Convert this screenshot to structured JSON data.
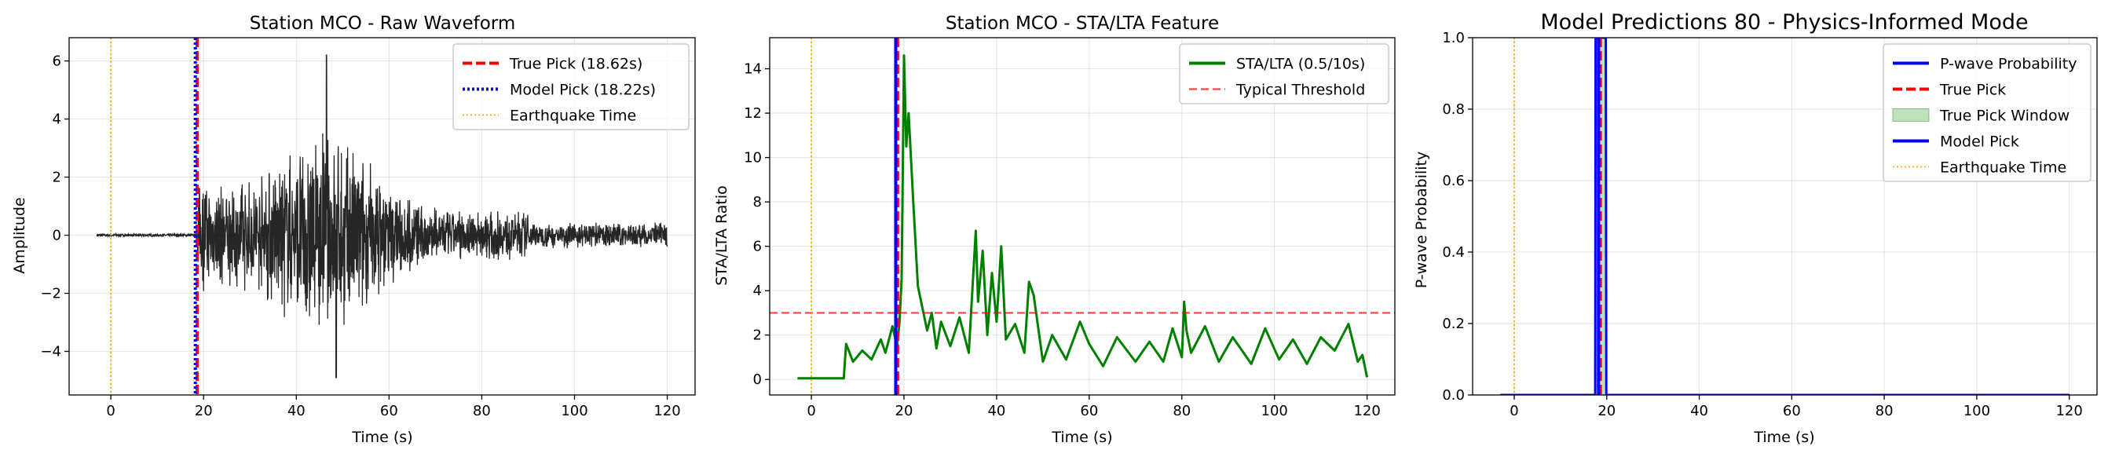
{
  "figure": {
    "background": "#ffffff"
  },
  "chart_data": [
    {
      "type": "line",
      "title": "Station MCO - Raw Waveform",
      "xlabel": "Time (s)",
      "ylabel": "Amplitude",
      "xlim": [
        -9,
        126
      ],
      "ylim": [
        -5.5,
        6.8
      ],
      "xticks": [
        0,
        20,
        40,
        60,
        80,
        100,
        120
      ],
      "yticks": [
        -4,
        -2,
        0,
        2,
        4,
        6
      ],
      "ytick_labels": [
        "−4",
        "−2",
        "0",
        "2",
        "4",
        "6"
      ],
      "grid": true,
      "legend_position": "top-right",
      "series": [
        {
          "name": "",
          "kind": "waveform",
          "color": "#000000",
          "x_start": -3,
          "x_end": 120,
          "onset_time": 18.6,
          "pre_noise_amplitude": 0.04,
          "peak_positive": 6.2,
          "peak_negative": -4.9,
          "peak_time": 46.5
        }
      ],
      "vlines": [
        {
          "name": "True Pick (18.62s)",
          "x": 18.62,
          "color": "#ff0000",
          "style": "dashed"
        },
        {
          "name": "Model Pick (18.22s)",
          "x": 18.22,
          "color": "#0000ff",
          "style": "dotted"
        },
        {
          "name": "Earthquake Time",
          "x": 0,
          "color": "#ffa500",
          "style": "dotted-thin"
        }
      ],
      "legend": [
        {
          "label": "True Pick (18.62s)",
          "color": "#ff0000",
          "style": "dashed"
        },
        {
          "label": "Model Pick (18.22s)",
          "color": "#0000ff",
          "style": "dotted"
        },
        {
          "label": "Earthquake Time",
          "color": "#ffa500",
          "style": "dotted-thin"
        }
      ]
    },
    {
      "type": "line",
      "title": "Station MCO - STA/LTA Feature",
      "xlabel": "Time (s)",
      "ylabel": "STA/LTA Ratio",
      "xlim": [
        -9,
        126
      ],
      "ylim": [
        -0.7,
        15.4
      ],
      "xticks": [
        0,
        20,
        40,
        60,
        80,
        100,
        120
      ],
      "yticks": [
        0,
        2,
        4,
        6,
        8,
        10,
        12,
        14
      ],
      "ytick_labels": [
        "0",
        "2",
        "4",
        "6",
        "8",
        "10",
        "12",
        "14"
      ],
      "grid": true,
      "legend_position": "top-right",
      "series": [
        {
          "name": "STA/LTA (0.5/10s)",
          "color": "#008000",
          "x": [
            -3,
            7,
            7.5,
            9,
            11,
            13,
            15,
            16,
            17.5,
            18.5,
            19,
            19.5,
            20,
            20.5,
            21,
            22,
            23,
            24,
            25,
            26,
            27,
            28,
            30,
            32,
            34,
            35.5,
            36,
            37,
            38,
            39,
            40,
            41,
            42,
            44,
            46,
            47,
            48,
            50,
            52,
            55,
            58,
            60,
            63,
            66,
            70,
            73,
            76,
            78,
            80,
            80.5,
            81,
            82,
            85,
            88,
            91,
            95,
            98,
            101,
            104,
            107,
            110,
            113,
            116,
            118,
            119,
            120
          ],
          "y": [
            0.05,
            0.05,
            1.6,
            0.8,
            1.3,
            0.9,
            1.8,
            1.2,
            2.4,
            1.5,
            2.5,
            4.5,
            14.6,
            10.5,
            12.0,
            8.0,
            4.2,
            3.2,
            2.2,
            3.0,
            1.4,
            2.6,
            1.5,
            2.8,
            1.2,
            6.7,
            3.5,
            5.8,
            2.0,
            4.8,
            2.6,
            6.0,
            1.8,
            2.5,
            1.2,
            4.4,
            3.8,
            0.8,
            2.0,
            0.9,
            2.6,
            1.6,
            0.6,
            1.9,
            0.8,
            1.7,
            0.8,
            2.3,
            1.0,
            3.5,
            2.2,
            1.2,
            2.4,
            0.8,
            1.9,
            0.7,
            2.3,
            0.9,
            1.8,
            0.7,
            1.9,
            1.3,
            2.5,
            0.8,
            1.1,
            0.1
          ]
        }
      ],
      "hlines": [
        {
          "name": "Typical Threshold",
          "y": 3,
          "color": "#ff0000",
          "style": "dashed",
          "alpha": 0.75
        }
      ],
      "vlines": [
        {
          "name": "True Pick",
          "x": 18.62,
          "color": "#ff0000",
          "style": "dashed"
        },
        {
          "name": "Model Pick",
          "x": 18.22,
          "color": "#0000ff",
          "style": "solid"
        },
        {
          "name": "Earthquake Time",
          "x": 0,
          "color": "#ffa500",
          "style": "dotted-thin"
        }
      ],
      "legend": [
        {
          "label": "STA/LTA (0.5/10s)",
          "color": "#008000",
          "style": "solid"
        },
        {
          "label": "Typical Threshold",
          "color": "#ff0000",
          "style": "dashed-light"
        }
      ]
    },
    {
      "type": "line",
      "title": "Model Predictions 80 - Physics-Informed Mode",
      "xlabel": "Time (s)",
      "ylabel": "P-wave Probability",
      "xlim": [
        -9,
        126
      ],
      "ylim": [
        0,
        1
      ],
      "xticks": [
        0,
        20,
        40,
        60,
        80,
        100,
        120
      ],
      "yticks": [
        0,
        0.2,
        0.4,
        0.6,
        0.8,
        1.0
      ],
      "ytick_labels": [
        "0.0",
        "0.2",
        "0.4",
        "0.6",
        "0.8",
        "1.0"
      ],
      "grid": true,
      "legend_position": "top-right",
      "series": [
        {
          "name": "P-wave Probability",
          "color": "#0000ff",
          "x": [
            -3,
            17.5,
            17.6,
            19.8,
            19.9,
            120
          ],
          "y": [
            0,
            0,
            1,
            1,
            0,
            0
          ]
        }
      ],
      "spans": [
        {
          "name": "True Pick Window",
          "x0": 17.6,
          "x1": 19.6,
          "color": "#008000",
          "alpha": 0.25
        }
      ],
      "vlines": [
        {
          "name": "True Pick",
          "x": 18.62,
          "color": "#ff0000",
          "style": "dashed"
        },
        {
          "name": "Model Pick",
          "x": 18.22,
          "color": "#0000ff",
          "style": "solid"
        },
        {
          "name": "Earthquake Time",
          "x": 0,
          "color": "#ffa500",
          "style": "dotted-thin"
        }
      ],
      "legend": [
        {
          "label": "P-wave Probability",
          "color": "#0000ff",
          "style": "solid"
        },
        {
          "label": "True Pick",
          "color": "#ff0000",
          "style": "dashed"
        },
        {
          "label": "True Pick Window",
          "color": "#008000",
          "style": "patch"
        },
        {
          "label": "Model Pick",
          "color": "#0000ff",
          "style": "solid"
        },
        {
          "label": "Earthquake Time",
          "color": "#ffa500",
          "style": "dotted-thin"
        }
      ]
    }
  ]
}
